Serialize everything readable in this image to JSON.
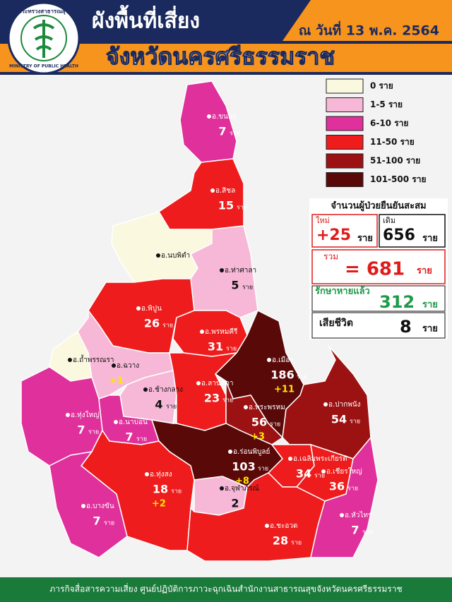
{
  "header": {
    "logo_top": "กระทรวงสาธารณสุข",
    "logo_bottom": "MINISTRY OF PUBLIC HEALTH",
    "title": "ผังพื้นที่เสี่ยง",
    "date": "ณ วันที่ 13 พ.ค. 2564",
    "subtitle": "จังหวัดนครศรีธรรมราช"
  },
  "legend": [
    {
      "label": "0 ราย",
      "color": "#fbf8e0"
    },
    {
      "label": "1-5 ราย",
      "color": "#f6b8d6"
    },
    {
      "label": "6-10 ราย",
      "color": "#e0309b"
    },
    {
      "label": "11-50 ราย",
      "color": "#ee1c1c"
    },
    {
      "label": "51-100 ราย",
      "color": "#9c1212"
    },
    {
      "label": "101-500 ราย",
      "color": "#5a0909"
    }
  ],
  "summary": {
    "title": "จำนวนผู้ป่วยยืนยันสะสม",
    "new_label": "ใหม่",
    "new_value": "+25",
    "prev_label": "เดิม",
    "prev_value": "656",
    "total_label": "รวม",
    "total_value": "= 681",
    "recovered_label": "รักษาหายแล้ว",
    "recovered_value": "312",
    "deaths_label": "เสียชีวิต",
    "deaths_value": "8",
    "unit": "ราย"
  },
  "districts": [
    {
      "name": "อ.ขนอม",
      "count": "7",
      "unit": "ราย",
      "color": "#e0309b"
    },
    {
      "name": "อ.สิชล",
      "count": "15",
      "unit": "ราย",
      "color": "#ee1c1c"
    },
    {
      "name": "อ.นบพิตำ",
      "color": "#fbf8e0"
    },
    {
      "name": "อ.ท่าศาลา",
      "count": "5",
      "unit": "ราย",
      "color": "#f6b8d6"
    },
    {
      "name": "อ.พิปูน",
      "count": "26",
      "unit": "ราย",
      "color": "#ee1c1c"
    },
    {
      "name": "อ.พรหมคีรี",
      "count": "31",
      "unit": "ราย",
      "color": "#ee1c1c"
    },
    {
      "name": "อ.ถ้ำพรรณรา",
      "color": "#fbf8e0"
    },
    {
      "name": "อ.ฉวาง",
      "delta": "+1",
      "color": "#f6b8d6"
    },
    {
      "name": "อ.ช้างกลาง",
      "count": "4",
      "unit": "ราย",
      "color": "#f6b8d6"
    },
    {
      "name": "อ.ลานสกา",
      "count": "23",
      "unit": "ราย",
      "color": "#ee1c1c"
    },
    {
      "name": "อ.เมือง",
      "count": "186",
      "unit": "ราย",
      "delta": "+11",
      "color": "#5a0909"
    },
    {
      "name": "อ.พระพรหม",
      "count": "56",
      "unit": "ราย",
      "delta": "+3",
      "color": "#9c1212"
    },
    {
      "name": "อ.ปากพนัง",
      "count": "54",
      "unit": "ราย",
      "color": "#9c1212"
    },
    {
      "name": "อ.ทุ่งใหญ่",
      "count": "7",
      "unit": "ราย",
      "color": "#e0309b"
    },
    {
      "name": "อ.นาบอน",
      "count": "7",
      "unit": "ราย",
      "color": "#e0309b"
    },
    {
      "name": "อ.ร่อนพิบูลย์",
      "count": "103",
      "unit": "ราย",
      "delta": "+8",
      "color": "#5a0909"
    },
    {
      "name": "อ.เฉลิมพระเกียรติ",
      "count": "34",
      "unit": "ราย",
      "color": "#ee1c1c"
    },
    {
      "name": "อ.เชียรใหญ่",
      "count": "36",
      "unit": "ราย",
      "color": "#ee1c1c"
    },
    {
      "name": "อ.ทุ่งสง",
      "count": "18",
      "unit": "ราย",
      "delta": "+2",
      "color": "#ee1c1c"
    },
    {
      "name": "อ.จุฬาภรณ์",
      "count": "2",
      "color": "#f6b8d6"
    },
    {
      "name": "อ.ชะอวด",
      "count": "28",
      "unit": "ราย",
      "color": "#ee1c1c"
    },
    {
      "name": "อ.บางขัน",
      "count": "7",
      "unit": "ราย",
      "color": "#e0309b"
    },
    {
      "name": "อ.หัวไทร",
      "count": "7",
      "unit": "ราย",
      "color": "#e0309b"
    }
  ],
  "footer": "ภารกิจสื่อสารความเสี่ยง ศูนย์ปฏิบัติการภาวะฉุกเฉินสำนักงานสาธารณสุขจังหวัดนครศรีธรรมราช"
}
